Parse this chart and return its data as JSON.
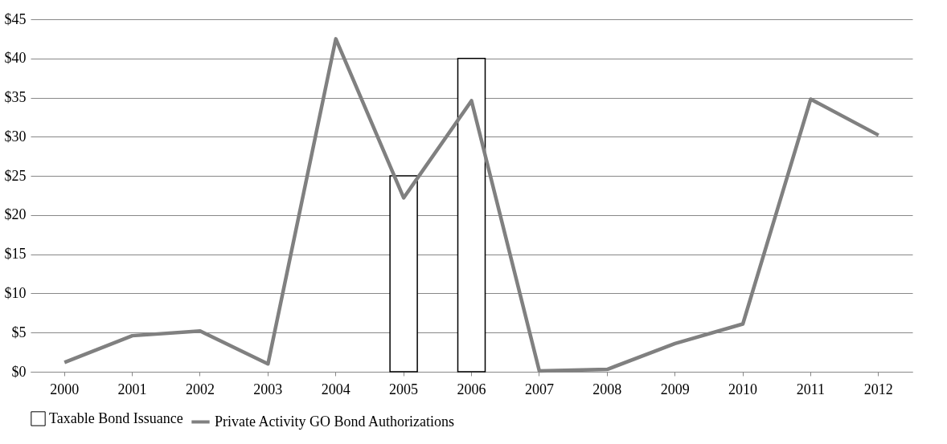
{
  "chart_data": {
    "type": "bar",
    "categories": [
      "2000",
      "2001",
      "2002",
      "2003",
      "2004",
      "2005",
      "2006",
      "2007",
      "2008",
      "2009",
      "2010",
      "2011",
      "2012"
    ],
    "series": [
      {
        "name": "Taxable Bond Issuance",
        "color": "#ffffff",
        "values": [
          null,
          null,
          null,
          null,
          null,
          25,
          40,
          null,
          null,
          null,
          null,
          null,
          null
        ]
      },
      {
        "name": "Private Activity GO Bond Authorizations",
        "type": "line",
        "color": "#808080",
        "values": [
          1.2,
          4.6,
          5.2,
          1.0,
          42.5,
          22.2,
          34.6,
          0.1,
          0.3,
          3.6,
          6.1,
          34.8,
          30.2
        ]
      }
    ],
    "ylim": [
      0,
      45
    ],
    "yticks": [
      {
        "value": 0,
        "label": "$0"
      },
      {
        "value": 5,
        "label": "$5"
      },
      {
        "value": 10,
        "label": "$10"
      },
      {
        "value": 15,
        "label": "$15"
      },
      {
        "value": 20,
        "label": "$20"
      },
      {
        "value": 25,
        "label": "$25"
      },
      {
        "value": 30,
        "label": "$30"
      },
      {
        "value": 35,
        "label": "$35"
      },
      {
        "value": 40,
        "label": "$40"
      },
      {
        "value": 45,
        "label": "$45"
      }
    ],
    "grid": "y",
    "legend": "bottom",
    "marker": "none",
    "line_style": "solid"
  }
}
